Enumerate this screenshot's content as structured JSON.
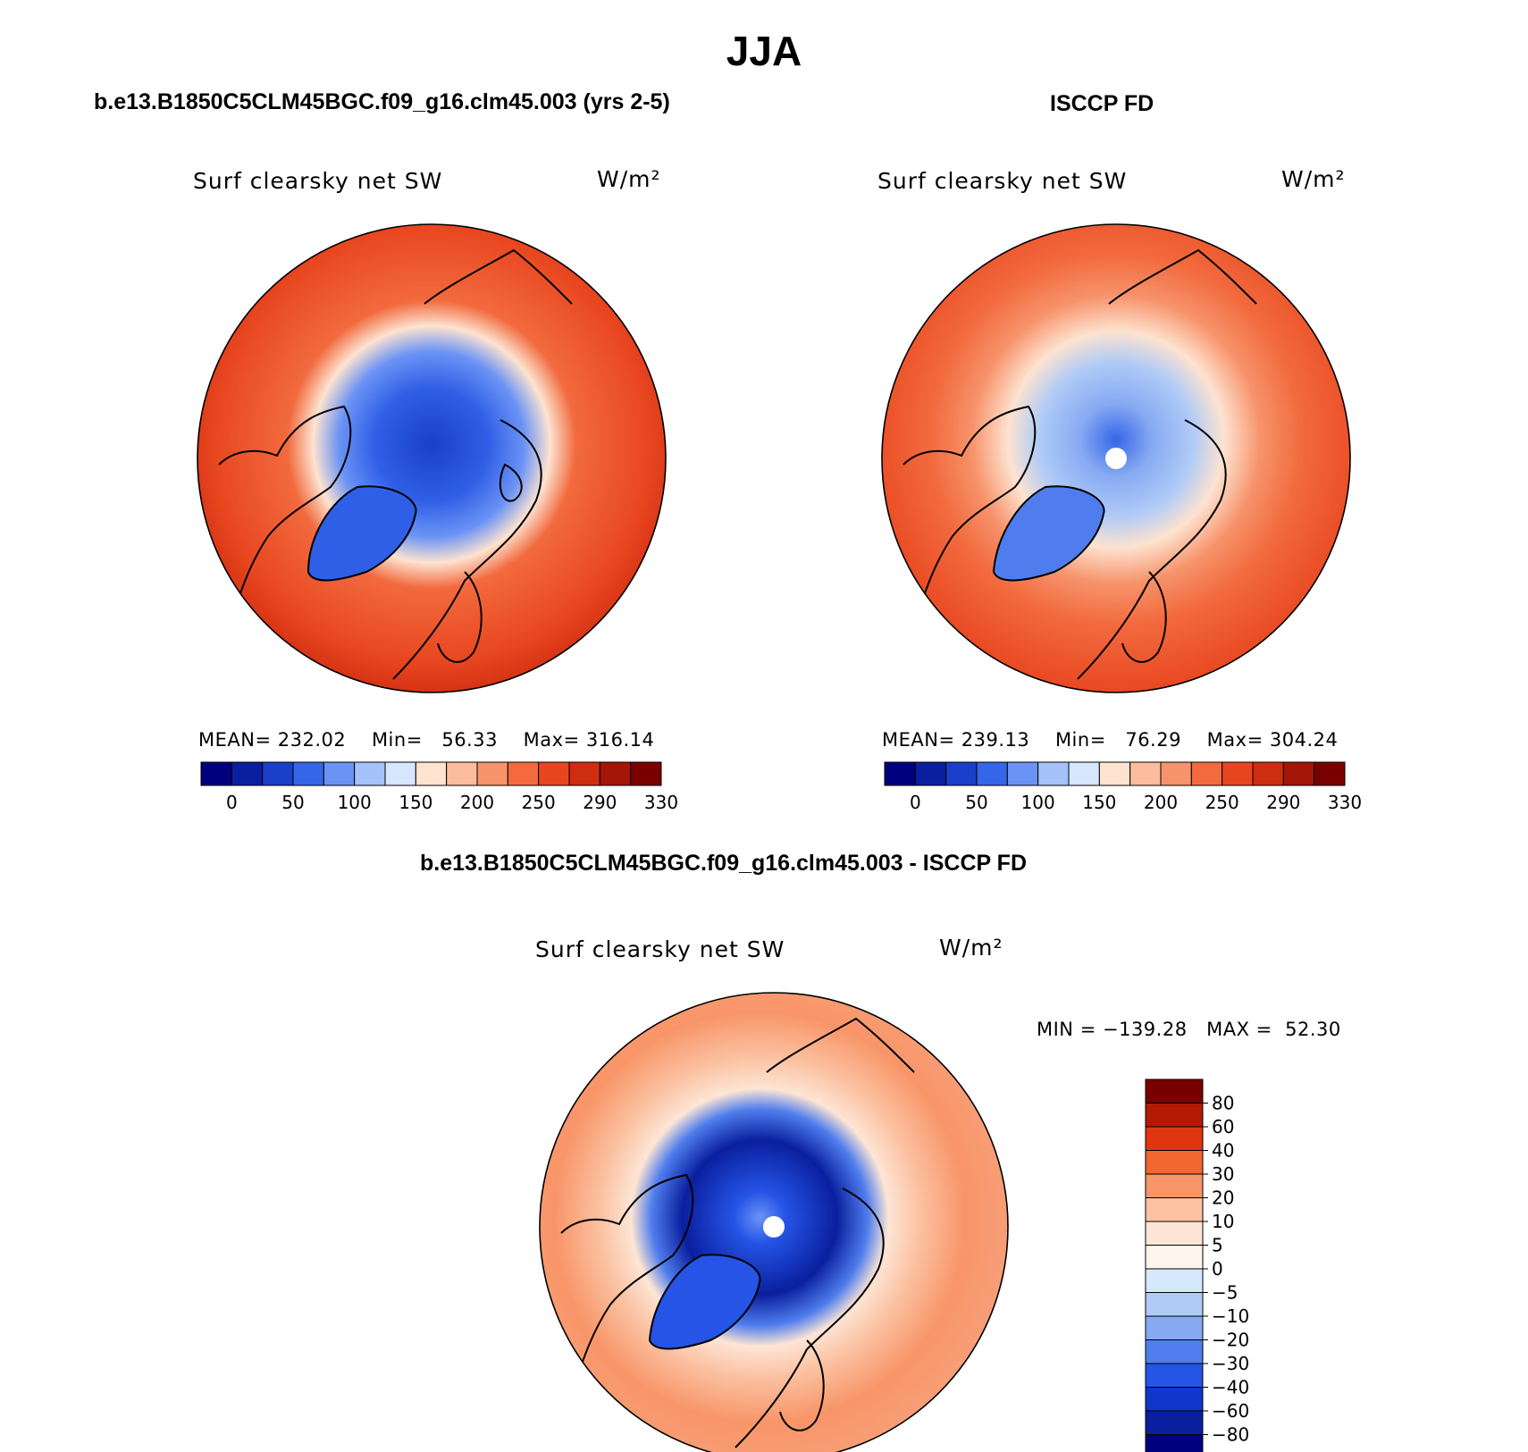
{
  "title": "JJA",
  "panels": {
    "model": {
      "title": "b.e13.B1850C5CLM45BGC.f09_g16.clm45.003 (yrs 2-5)",
      "variable": "Surf clearsky net SW",
      "units": "W/m²",
      "stats": {
        "mean_label": "MEAN=",
        "mean": "232.02",
        "min_label": "Min=",
        "min": "56.33",
        "max_label": "Max=",
        "max": "316.14"
      }
    },
    "obs": {
      "title": "ISCCP FD",
      "variable": "Surf clearsky net SW",
      "units": "W/m²",
      "stats": {
        "mean_label": "MEAN=",
        "mean": "239.13",
        "min_label": "Min=",
        "min": "76.29",
        "max_label": "Max=",
        "max": "304.24"
      }
    },
    "diff": {
      "title": "b.e13.B1850C5CLM45BGC.f09_g16.clm45.003 - ISCCP FD",
      "variable": "Surf clearsky net SW",
      "units": "W/m²",
      "stats": {
        "min_label": "MIN =",
        "min": "−139.28",
        "max_label": "MAX =",
        "max": "52.30"
      }
    }
  },
  "colorbars": {
    "absolute": {
      "labels": [
        "0",
        "50",
        "100",
        "150",
        "200",
        "250",
        "290",
        "330"
      ],
      "colors": [
        "#00007f",
        "#0a1fa0",
        "#1a3fc8",
        "#3566e8",
        "#6b93f5",
        "#a6c2fa",
        "#d6e6fc",
        "#fde3d0",
        "#fbbd9e",
        "#f7936b",
        "#f26a3e",
        "#e8461f",
        "#cf2d10",
        "#a31708",
        "#7a0000"
      ]
    },
    "difference": {
      "labels": [
        "80",
        "60",
        "40",
        "30",
        "20",
        "10",
        "5",
        "0",
        "−5",
        "−10",
        "−20",
        "−30",
        "−40",
        "−60",
        "−80"
      ],
      "colors": [
        "#7a0000",
        "#b21a05",
        "#e0360f",
        "#f2662f",
        "#f89568",
        "#fbc2a2",
        "#fde5d5",
        "#fff5ee",
        "#d6e8fb",
        "#b0cbf7",
        "#86a9f2",
        "#4f7ded",
        "#2554e6",
        "#1035c9",
        "#0a1f9e",
        "#00007f"
      ]
    }
  }
}
